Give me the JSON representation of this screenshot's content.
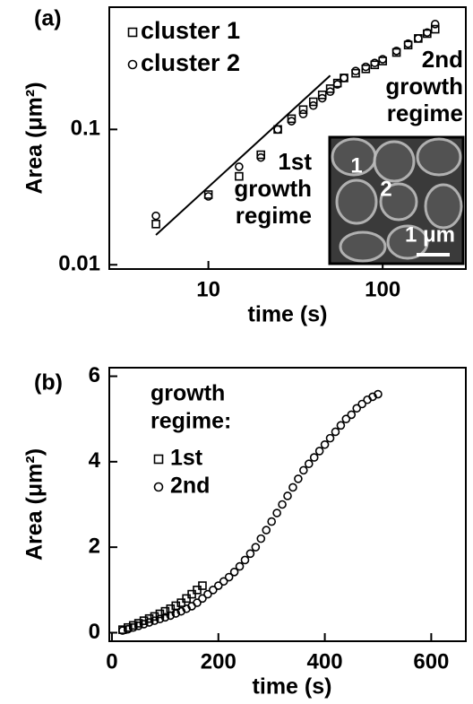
{
  "chart_data": [
    {
      "type": "scatter",
      "panel_label": "(a)",
      "xlabel": "time (s)",
      "ylabel": "Area (μm²)",
      "xscale": "log",
      "yscale": "log",
      "xlim": [
        2.7,
        300
      ],
      "ylim": [
        0.0093,
        0.8
      ],
      "xticks": [
        10,
        100
      ],
      "yticks": [
        0.01,
        0.1
      ],
      "series": [
        {
          "name": "cluster 1",
          "marker": "square",
          "color": "#000000",
          "x": [
            5,
            10,
            15,
            20,
            25,
            30,
            35,
            40,
            45,
            50,
            55,
            60,
            70,
            80,
            90,
            100,
            120,
            140,
            160,
            180,
            200
          ],
          "values": [
            0.02,
            0.033,
            0.045,
            0.065,
            0.1,
            0.12,
            0.14,
            0.16,
            0.18,
            0.2,
            0.22,
            0.24,
            0.26,
            0.28,
            0.3,
            0.32,
            0.37,
            0.42,
            0.47,
            0.51,
            0.55
          ]
        },
        {
          "name": "cluster 2",
          "marker": "circle",
          "color": "#000000",
          "x": [
            5,
            10,
            15,
            20,
            25,
            30,
            35,
            40,
            45,
            50,
            55,
            60,
            70,
            80,
            90,
            100,
            120,
            140,
            160,
            180,
            200
          ],
          "values": [
            0.023,
            0.032,
            0.053,
            0.062,
            0.1,
            0.115,
            0.13,
            0.15,
            0.17,
            0.19,
            0.215,
            0.24,
            0.27,
            0.29,
            0.31,
            0.33,
            0.38,
            0.43,
            0.47,
            0.52,
            0.6
          ]
        }
      ],
      "fit": {
        "x": [
          5,
          50
        ],
        "values": [
          0.0166,
          0.25
        ]
      },
      "annotations": [
        {
          "lines": [
            "1st",
            "growth",
            "regime"
          ]
        },
        {
          "lines": [
            "2nd",
            "growth",
            "regime"
          ]
        }
      ],
      "inset": {
        "labels": [
          "1",
          "2"
        ],
        "scale_bar": "1 μm"
      }
    },
    {
      "type": "scatter",
      "panel_label": "(b)",
      "xlabel": "time (s)",
      "ylabel": "Area (μm²)",
      "xscale": "linear",
      "yscale": "linear",
      "xlim": [
        -5,
        665
      ],
      "ylim": [
        -0.2,
        6.2
      ],
      "xticks": [
        0,
        200,
        400,
        600
      ],
      "yticks": [
        0,
        2,
        4,
        6
      ],
      "legend_title": [
        "growth",
        "regime:"
      ],
      "series": [
        {
          "name": "1st",
          "marker": "square",
          "color": "#000000",
          "x": [
            20,
            30,
            40,
            50,
            60,
            70,
            80,
            90,
            100,
            110,
            120,
            130,
            140,
            150,
            160,
            170
          ],
          "values": [
            0.07,
            0.12,
            0.17,
            0.22,
            0.28,
            0.33,
            0.38,
            0.44,
            0.5,
            0.56,
            0.63,
            0.7,
            0.8,
            0.9,
            1.0,
            1.1
          ]
        },
        {
          "name": "2nd",
          "marker": "circle",
          "color": "#000000",
          "x": [
            20,
            30,
            40,
            50,
            60,
            70,
            80,
            90,
            100,
            110,
            120,
            130,
            140,
            150,
            160,
            170,
            180,
            190,
            200,
            210,
            220,
            230,
            240,
            250,
            260,
            270,
            280,
            290,
            300,
            310,
            320,
            330,
            340,
            350,
            360,
            370,
            380,
            390,
            400,
            410,
            420,
            430,
            440,
            450,
            460,
            470,
            480,
            490,
            500
          ],
          "values": [
            0.05,
            0.08,
            0.12,
            0.16,
            0.2,
            0.24,
            0.28,
            0.32,
            0.36,
            0.4,
            0.45,
            0.5,
            0.56,
            0.62,
            0.7,
            0.8,
            0.9,
            1.0,
            1.1,
            1.2,
            1.3,
            1.42,
            1.55,
            1.7,
            1.85,
            2.0,
            2.2,
            2.4,
            2.6,
            2.8,
            3.0,
            3.2,
            3.4,
            3.6,
            3.8,
            3.95,
            4.1,
            4.25,
            4.4,
            4.55,
            4.7,
            4.85,
            5.0,
            5.1,
            5.25,
            5.35,
            5.45,
            5.52,
            5.58
          ]
        }
      ]
    }
  ]
}
